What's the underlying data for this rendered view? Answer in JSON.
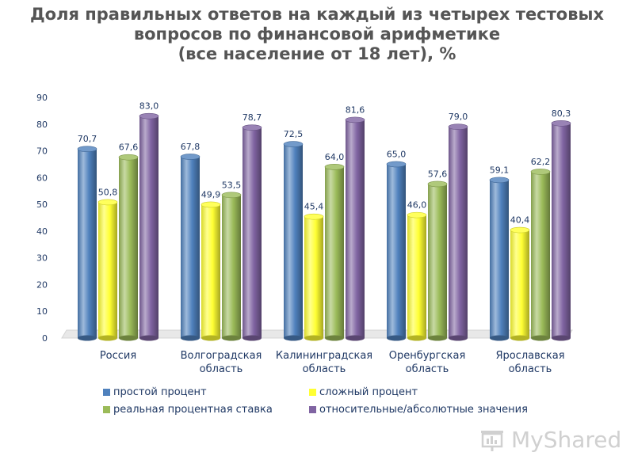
{
  "title": {
    "line1": "Доля правильных ответов на каждый из четырех тестовых",
    "line2": "вопросов по финансовой арифметике",
    "line3": "(все население от 18 лет), %"
  },
  "watermark": {
    "text": "MyShared",
    "icon": "presentation-board-icon"
  },
  "colors": {
    "title": "#555555",
    "axis_text": "#1f3864",
    "series": [
      "#4f81bd",
      "#ffff33",
      "#9bbb59",
      "#8064a2"
    ]
  },
  "chart_data": {
    "type": "bar",
    "title": "Доля правильных ответов на каждый из четырех тестовых вопросов по финансовой арифметике (все население от 18 лет), %",
    "categories": [
      [
        "Россия"
      ],
      [
        "Волгоградская",
        "область"
      ],
      [
        "Калининградская",
        "область"
      ],
      [
        "Оренбургская",
        "область"
      ],
      [
        "Ярославская",
        "область"
      ]
    ],
    "series": [
      {
        "name": "простой процент",
        "values": [
          70.7,
          67.8,
          72.5,
          65.0,
          59.1
        ],
        "labels": [
          "70,7",
          "67,8",
          "72,5",
          "65,0",
          "59,1"
        ]
      },
      {
        "name": "сложный процент",
        "values": [
          50.8,
          49.9,
          45.4,
          46.0,
          40.4
        ],
        "labels": [
          "50,8",
          "49,9",
          "45,4",
          "46,0",
          "40,4"
        ]
      },
      {
        "name": "реальная процентная ставка",
        "values": [
          67.6,
          53.5,
          64.0,
          57.6,
          62.2
        ],
        "labels": [
          "67,6",
          "53,5",
          "64,0",
          "57,6",
          "62,2"
        ]
      },
      {
        "name": "относительные/абсолютные значения",
        "values": [
          83.0,
          78.7,
          81.6,
          79.0,
          80.3
        ],
        "labels": [
          "83,0",
          "78,7",
          "81,6",
          "79,0",
          "80,3"
        ]
      }
    ],
    "ylim": [
      0,
      90
    ],
    "yticks": [
      "0",
      "10",
      "20",
      "30",
      "40",
      "50",
      "60",
      "70",
      "80",
      "90"
    ],
    "grid": false,
    "legend_position": "bottom"
  }
}
